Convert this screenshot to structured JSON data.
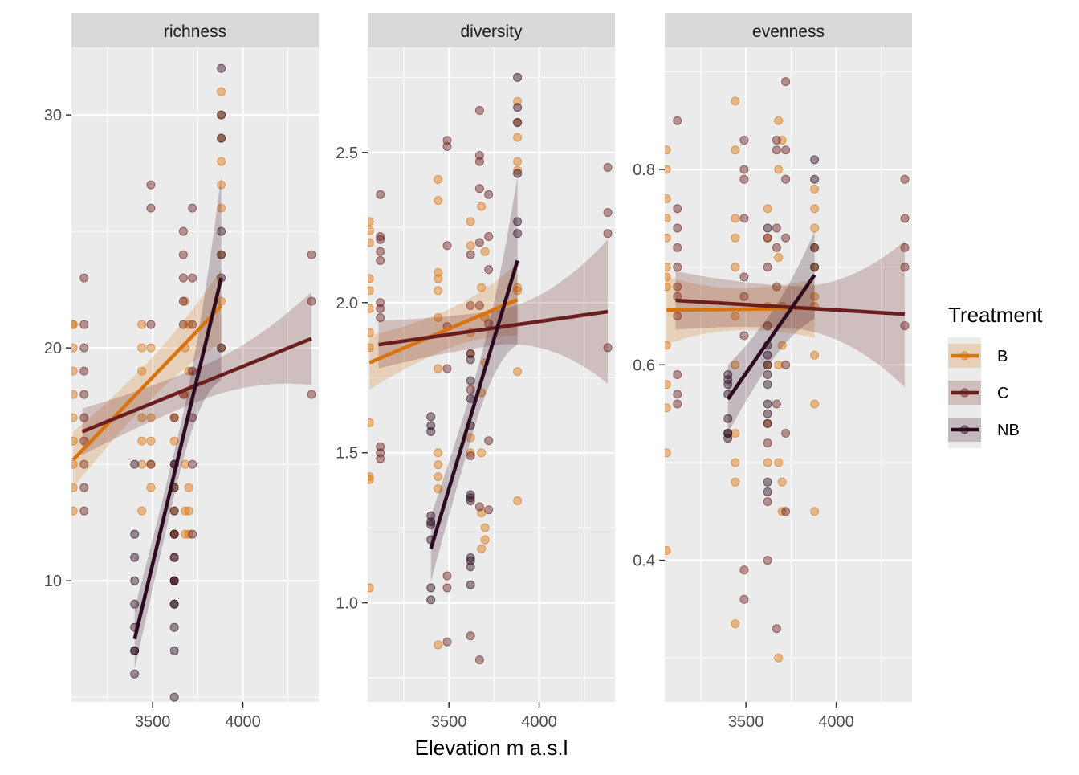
{
  "chart_data": {
    "type": "scatter",
    "xlabel": "Elevation m a.s.l",
    "legend": {
      "title": "Treatment",
      "position": "right",
      "entries": [
        {
          "label": "B",
          "color": "#D9730D"
        },
        {
          "label": "C",
          "color": "#6B1E1E"
        },
        {
          "label": "NB",
          "color": "#2D0A1F"
        }
      ]
    },
    "x_range": [
      3050,
      4420
    ],
    "x_ticks": [
      3500,
      4000
    ],
    "x_tick_labels": [
      "3500",
      "4000"
    ],
    "point_alpha": 0.45,
    "band_alpha": 0.22,
    "panels": [
      {
        "strip": "richness",
        "y_range": [
          4.8,
          32.9
        ],
        "y_ticks": [
          10,
          20,
          30
        ],
        "y_tick_labels": [
          "10",
          "20",
          "30"
        ],
        "fits": [
          {
            "group": "B",
            "x0": 3060,
            "x1": 3880,
            "y0": 15.2,
            "y1": 21.8,
            "se0": 1.2,
            "se1": 1.6
          },
          {
            "group": "C",
            "x0": 3110,
            "x1": 4380,
            "y0": 16.4,
            "y1": 20.4,
            "se0": 1.0,
            "se1": 2.0
          },
          {
            "group": "NB",
            "x0": 3400,
            "x1": 3880,
            "y0": 7.5,
            "y1": 23.0,
            "se0": 1.3,
            "se1": 4.4
          }
        ],
        "points": [
          {
            "group": "B",
            "x": [
              3060,
              3060,
              3060,
              3060,
              3060,
              3060,
              3060,
              3060,
              3060,
              3060,
              3440,
              3440,
              3440,
              3440,
              3440,
              3440,
              3440,
              3490,
              3490,
              3490,
              3490,
              3490,
              3620,
              3620,
              3620,
              3620,
              3620,
              3680,
              3680,
              3680,
              3680,
              3680,
              3680,
              3700,
              3700,
              3700,
              3700,
              3700,
              3880,
              3880,
              3880,
              3880,
              3880,
              3880,
              3880,
              3880,
              3880
            ],
            "y": [
              21,
              20,
              19,
              18,
              17,
              16,
              15,
              14,
              13,
              21,
              21,
              20,
              19,
              17,
              16,
              15,
              13,
              20,
              17,
              16,
              15,
              14,
              17,
              16,
              14,
              13,
              12,
              22,
              20,
              18,
              15,
              13,
              12,
              21,
              19,
              14,
              13,
              12,
              31,
              30,
              29,
              28,
              27,
              26,
              24,
              22,
              20
            ]
          },
          {
            "group": "C",
            "x": [
              3120,
              3120,
              3120,
              3120,
              3120,
              3120,
              3120,
              3120,
              3120,
              3120,
              3490,
              3490,
              3490,
              3490,
              3620,
              3620,
              3620,
              3620,
              3620,
              3670,
              3670,
              3670,
              3670,
              3670,
              3670,
              3720,
              3720,
              3720,
              3720,
              3720,
              3720,
              3720,
              4380,
              4380,
              4380
            ],
            "y": [
              23,
              21,
              20,
              19,
              18,
              17,
              16,
              15,
              14,
              13,
              27,
              26,
              21,
              15,
              17,
              15,
              12,
              11,
              10,
              25,
              24,
              23,
              22,
              21,
              18,
              26,
              23,
              21,
              19,
              17,
              15,
              12,
              24,
              22,
              18
            ]
          },
          {
            "group": "NB",
            "x": [
              3400,
              3400,
              3400,
              3400,
              3400,
              3400,
              3400,
              3400,
              3400,
              3620,
              3620,
              3620,
              3620,
              3620,
              3620,
              3620,
              3620,
              3620,
              3620,
              3620,
              3620,
              3880,
              3880,
              3880,
              3880,
              3880,
              3880,
              3880
            ],
            "y": [
              15,
              12,
              11,
              10,
              9,
              8,
              7,
              6,
              7,
              15,
              14,
              13,
              12,
              11,
              10,
              9,
              8,
              7,
              5,
              10,
              9,
              32,
              30,
              29,
              25,
              24,
              20,
              23
            ]
          }
        ]
      },
      {
        "strip": "diversity",
        "y_range": [
          0.67,
          2.85
        ],
        "y_ticks": [
          1.0,
          1.5,
          2.0,
          2.5
        ],
        "y_tick_labels": [
          "1.0",
          "1.5",
          "2.0",
          "2.5"
        ],
        "fits": [
          {
            "group": "B",
            "x0": 3060,
            "x1": 3880,
            "y0": 1.8,
            "y1": 2.01,
            "se0": 0.09,
            "se1": 0.12
          },
          {
            "group": "C",
            "x0": 3110,
            "x1": 4380,
            "y0": 1.86,
            "y1": 1.97,
            "se0": 0.08,
            "se1": 0.24
          },
          {
            "group": "NB",
            "x0": 3400,
            "x1": 3880,
            "y0": 1.18,
            "y1": 2.14,
            "se0": 0.11,
            "se1": 0.28
          }
        ],
        "points": [
          {
            "group": "B",
            "x": [
              3060,
              3060,
              3060,
              3060,
              3060,
              3060,
              3060,
              3060,
              3060,
              3060,
              3060,
              3060,
              3440,
              3440,
              3440,
              3440,
              3440,
              3440,
              3440,
              3440,
              3440,
              3440,
              3440,
              3440,
              3620,
              3620,
              3620,
              3620,
              3620,
              3620,
              3680,
              3680,
              3680,
              3680,
              3680,
              3680,
              3700,
              3700,
              3700,
              3700,
              3700,
              3880,
              3880,
              3880,
              3880,
              3880,
              3880,
              3880,
              3880,
              3880
            ],
            "y": [
              2.27,
              2.24,
              2.2,
              2.08,
              2.04,
              1.98,
              1.9,
              1.85,
              1.6,
              1.42,
              1.41,
              1.05,
              2.41,
              2.34,
              2.1,
              2.08,
              2.04,
              1.95,
              1.78,
              1.5,
              1.46,
              1.42,
              1.38,
              0.86,
              2.27,
              2.19,
              1.9,
              1.83,
              1.55,
              1.5,
              2.32,
              2.05,
              1.7,
              1.5,
              1.3,
              1.18,
              2.17,
              1.95,
              1.8,
              1.25,
              1.21,
              2.67,
              2.6,
              2.55,
              2.47,
              2.44,
              2.05,
              2.04,
              1.77,
              1.34
            ]
          },
          {
            "group": "C",
            "x": [
              3120,
              3120,
              3120,
              3120,
              3120,
              3120,
              3120,
              3120,
              3120,
              3120,
              3120,
              3490,
              3490,
              3490,
              3490,
              3490,
              3490,
              3490,
              3490,
              3620,
              3620,
              3620,
              3620,
              3620,
              3670,
              3670,
              3670,
              3670,
              3670,
              3670,
              3670,
              3670,
              3720,
              3720,
              3720,
              3720,
              3720,
              3720,
              4380,
              4380,
              4380,
              4380
            ],
            "y": [
              2.36,
              2.22,
              2.21,
              2.17,
              2.14,
              2.0,
              1.98,
              1.95,
              1.52,
              1.5,
              1.48,
              2.54,
              2.52,
              2.19,
              1.92,
              1.78,
              1.09,
              1.05,
              0.87,
              2.16,
              1.99,
              1.71,
              1.49,
              0.89,
              2.64,
              2.49,
              2.47,
              2.38,
              2.2,
              1.99,
              1.32,
              0.81,
              2.36,
              2.22,
              2.11,
              1.93,
              1.54,
              1.31,
              2.45,
              2.3,
              2.23,
              1.85
            ]
          },
          {
            "group": "NB",
            "x": [
              3400,
              3400,
              3400,
              3400,
              3400,
              3400,
              3400,
              3400,
              3400,
              3620,
              3620,
              3620,
              3620,
              3620,
              3620,
              3620,
              3620,
              3620,
              3620,
              3620,
              3620,
              3880,
              3880,
              3880,
              3880,
              3880,
              3880
            ],
            "y": [
              1.62,
              1.59,
              1.57,
              1.29,
              1.27,
              1.26,
              1.21,
              1.05,
              1.01,
              1.83,
              1.81,
              1.74,
              1.68,
              1.59,
              1.36,
              1.35,
              1.34,
              1.15,
              1.14,
              1.12,
              1.06,
              2.75,
              2.65,
              2.6,
              2.43,
              2.27,
              2.23
            ]
          }
        ]
      },
      {
        "strip": "evenness",
        "y_range": [
          0.255,
          0.925
        ],
        "y_ticks": [
          0.4,
          0.6,
          0.8
        ],
        "y_tick_labels": [
          "0.4",
          "0.6",
          "0.8"
        ],
        "fits": [
          {
            "group": "B",
            "x0": 3060,
            "x1": 3880,
            "y0": 0.656,
            "y1": 0.658,
            "se0": 0.035,
            "se1": 0.03
          },
          {
            "group": "C",
            "x0": 3110,
            "x1": 4380,
            "y0": 0.666,
            "y1": 0.652,
            "se0": 0.03,
            "se1": 0.075
          },
          {
            "group": "NB",
            "x0": 3400,
            "x1": 3880,
            "y0": 0.565,
            "y1": 0.692,
            "se0": 0.035,
            "se1": 0.045
          }
        ],
        "points": [
          {
            "group": "B",
            "x": [
              3060,
              3060,
              3060,
              3060,
              3060,
              3060,
              3060,
              3060,
              3060,
              3060,
              3060,
              3060,
              3060,
              3440,
              3440,
              3440,
              3440,
              3440,
              3440,
              3440,
              3440,
              3440,
              3440,
              3440,
              3620,
              3620,
              3620,
              3620,
              3620,
              3620,
              3680,
              3680,
              3680,
              3680,
              3680,
              3680,
              3700,
              3700,
              3700,
              3700,
              3700,
              3880,
              3880,
              3880,
              3880,
              3880,
              3880,
              3880,
              3880,
              3880,
              3880
            ],
            "y": [
              0.82,
              0.8,
              0.77,
              0.75,
              0.73,
              0.7,
              0.69,
              0.68,
              0.62,
              0.58,
              0.556,
              0.51,
              0.41,
              0.87,
              0.82,
              0.75,
              0.73,
              0.7,
              0.65,
              0.6,
              0.53,
              0.5,
              0.48,
              0.335,
              0.76,
              0.73,
              0.66,
              0.6,
              0.54,
              0.5,
              0.85,
              0.8,
              0.71,
              0.6,
              0.5,
              0.3,
              0.83,
              0.66,
              0.62,
              0.48,
              0.45,
              0.78,
              0.76,
              0.74,
              0.72,
              0.7,
              0.67,
              0.66,
              0.61,
              0.56,
              0.45
            ]
          },
          {
            "group": "C",
            "x": [
              3120,
              3120,
              3120,
              3120,
              3120,
              3120,
              3120,
              3120,
              3120,
              3120,
              3120,
              3490,
              3490,
              3490,
              3490,
              3490,
              3490,
              3490,
              3490,
              3490,
              3620,
              3620,
              3620,
              3620,
              3620,
              3620,
              3670,
              3670,
              3670,
              3670,
              3670,
              3670,
              3670,
              3720,
              3720,
              3720,
              3720,
              3720,
              3720,
              3720,
              4380,
              4380,
              4380,
              4380,
              4380
            ],
            "y": [
              0.85,
              0.76,
              0.74,
              0.72,
              0.7,
              0.68,
              0.65,
              0.59,
              0.57,
              0.56,
              0.67,
              0.83,
              0.8,
              0.79,
              0.75,
              0.69,
              0.67,
              0.63,
              0.39,
              0.36,
              0.73,
              0.7,
              0.64,
              0.52,
              0.46,
              0.4,
              0.83,
              0.82,
              0.74,
              0.72,
              0.68,
              0.56,
              0.33,
              0.89,
              0.82,
              0.79,
              0.73,
              0.6,
              0.53,
              0.45,
              0.79,
              0.75,
              0.72,
              0.7,
              0.64
            ]
          },
          {
            "group": "NB",
            "x": [
              3400,
              3400,
              3400,
              3400,
              3400,
              3400,
              3400,
              3400,
              3620,
              3620,
              3620,
              3620,
              3620,
              3620,
              3620,
              3620,
              3620,
              3620,
              3620,
              3880,
              3880,
              3880,
              3880
            ],
            "y": [
              0.59,
              0.585,
              0.58,
              0.57,
              0.545,
              0.53,
              0.525,
              0.53,
              0.74,
              0.62,
              0.61,
              0.6,
              0.59,
              0.58,
              0.56,
              0.55,
              0.54,
              0.48,
              0.47,
              0.81,
              0.79,
              0.72,
              0.7
            ]
          }
        ]
      }
    ]
  }
}
